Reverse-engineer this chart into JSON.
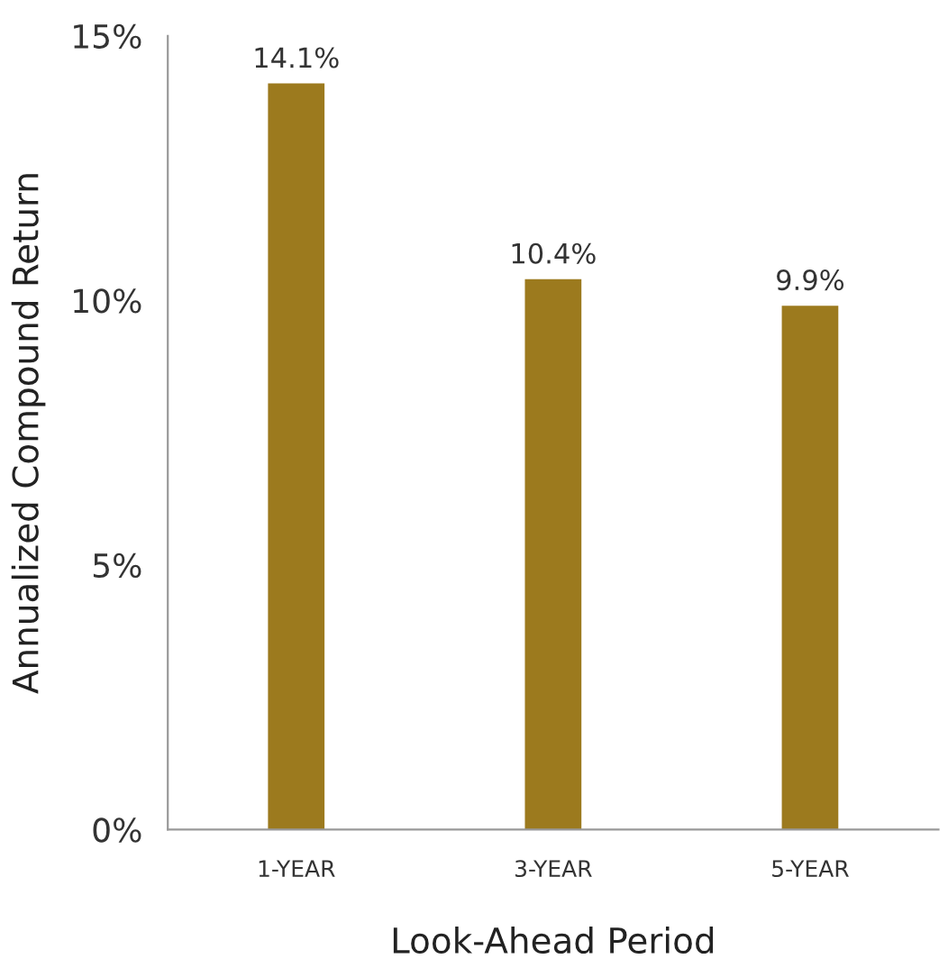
{
  "chart_data": {
    "type": "bar",
    "xlabel": "Look-Ahead Period",
    "ylabel": "Annualized Compound Return",
    "categories": [
      "1-YEAR",
      "3-YEAR",
      "5-YEAR"
    ],
    "values": [
      14.1,
      10.4,
      9.9
    ],
    "value_labels": [
      "14.1%",
      "10.4%",
      "9.9%"
    ],
    "color": "#9c7a1e",
    "ylim": [
      0,
      15
    ],
    "yticks": [
      {
        "value": 0,
        "label": "0%"
      },
      {
        "value": 5,
        "label": "5%"
      },
      {
        "value": 10,
        "label": "10%"
      },
      {
        "value": 15,
        "label": "15%"
      }
    ],
    "grid": false,
    "legend": false
  }
}
